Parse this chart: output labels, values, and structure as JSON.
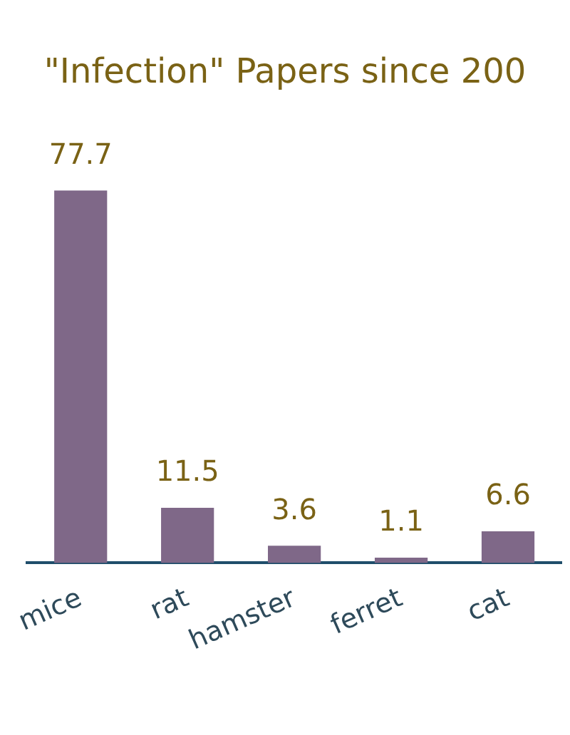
{
  "chart_data": {
    "type": "bar",
    "title": "\"Infection\" Papers since 200",
    "categories": [
      "mice",
      "rat",
      "hamster",
      "ferret",
      "cat"
    ],
    "values": [
      77.7,
      11.5,
      3.6,
      1.1,
      6.6
    ],
    "color": "#7f6888",
    "data_labels": true,
    "grid": false,
    "legend": false,
    "tick_labels": "x"
  }
}
